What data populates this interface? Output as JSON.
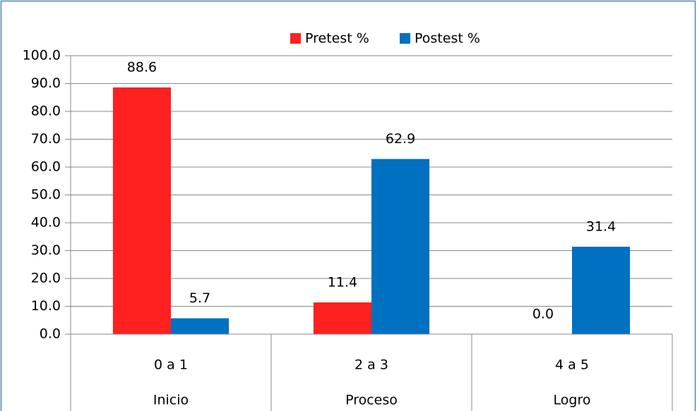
{
  "chart_data": {
    "type": "bar",
    "categories": [
      "0 a 1",
      "2 a 3",
      "4 a 5"
    ],
    "category_groups": [
      "Inicio",
      "Proceso",
      "Logro"
    ],
    "series": [
      {
        "name": "Pretest %",
        "color": "#ff2020",
        "values": [
          88.6,
          11.4,
          0
        ],
        "value_labels": [
          "88.6",
          "11.4",
          "0.0"
        ]
      },
      {
        "name": "Postest %",
        "color": "#0070c0",
        "values": [
          5.7,
          62.9,
          31.4
        ],
        "value_labels": [
          "5.7",
          "62.9",
          "31.4"
        ]
      }
    ],
    "ylim": [
      0,
      100
    ],
    "yticks": [
      {
        "value": 0,
        "label": "0.0"
      },
      {
        "value": 10,
        "label": "10.0"
      },
      {
        "value": 20,
        "label": "20.0"
      },
      {
        "value": 30,
        "label": "30.0"
      },
      {
        "value": 40,
        "label": "40.0"
      },
      {
        "value": 50,
        "label": "50.0"
      },
      {
        "value": 60,
        "label": "60.0"
      },
      {
        "value": 70,
        "label": "70.0"
      },
      {
        "value": 80,
        "label": "80.0"
      },
      {
        "value": 90,
        "label": "90.0"
      },
      {
        "value": 100,
        "label": "100.0"
      }
    ],
    "grid": true,
    "legend": "top"
  }
}
